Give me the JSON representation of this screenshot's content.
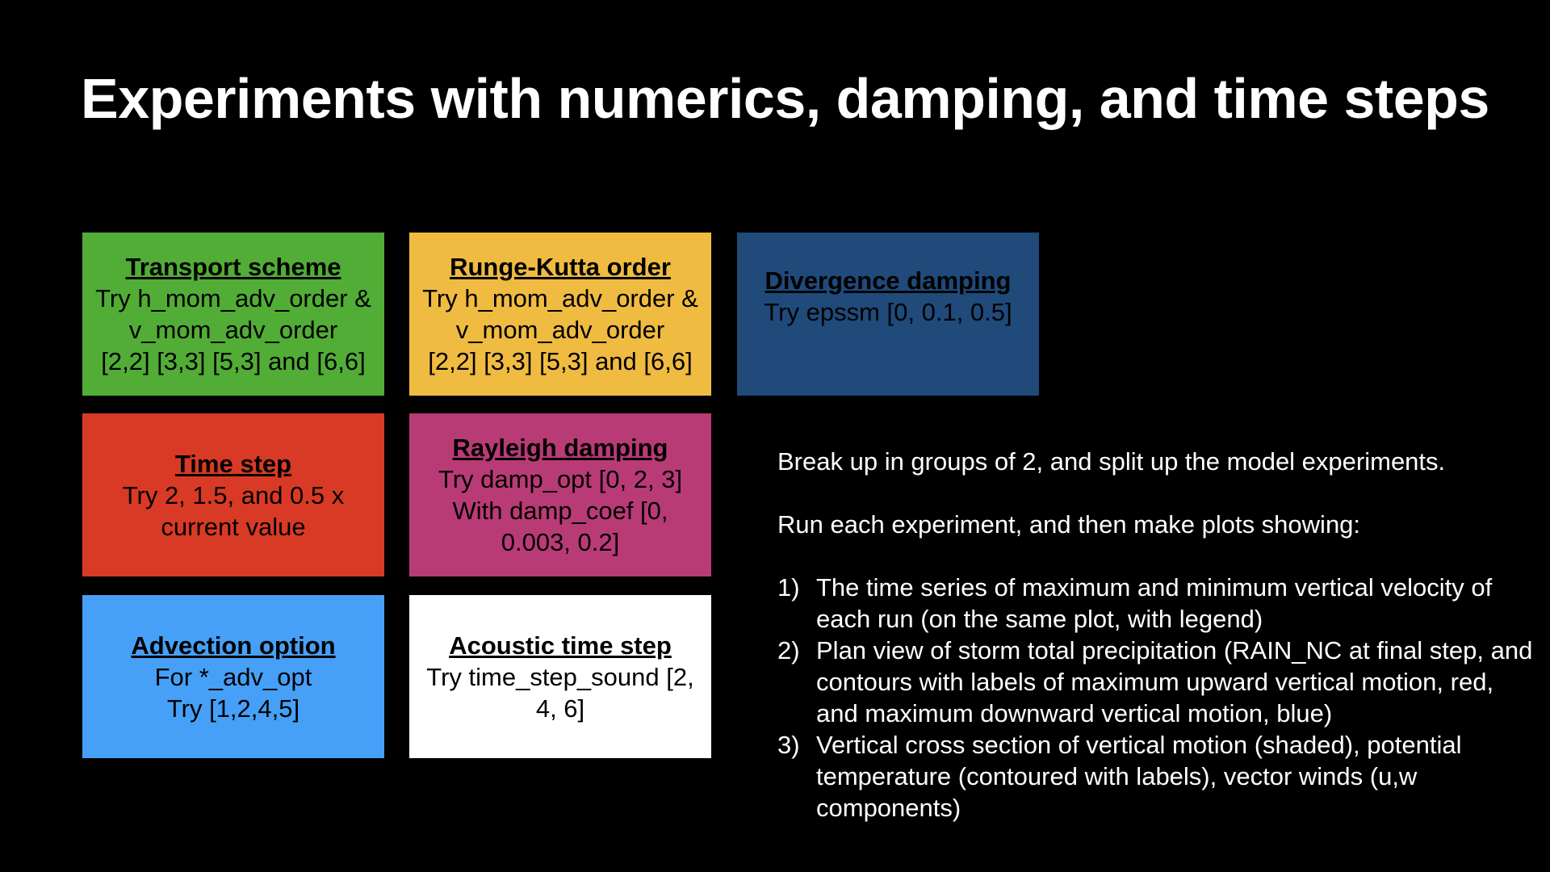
{
  "slide": {
    "title": "Experiments with numerics, damping, and time steps"
  },
  "colors": {
    "background": "#000000",
    "transport": "#52ad36",
    "runge_kutta": "#f0bb41",
    "divergence": "#1f4a7a",
    "time_step": "#d93a25",
    "rayleigh": "#b93b75",
    "advection": "#46a0f7",
    "acoustic": "#ffffff"
  },
  "tiles": {
    "transport": {
      "heading": "Transport scheme",
      "body": "Try h_mom_adv_order &\nv_mom_adv_order\n[2,2] [3,3] [5,3] and [6,6]"
    },
    "runge_kutta": {
      "heading": "Runge-Kutta order",
      "body": "Try h_mom_adv_order &\nv_mom_adv_order\n[2,2] [3,3] [5,3] and [6,6]"
    },
    "divergence": {
      "heading": "Divergence damping",
      "body": "Try epssm [0, 0.1, 0.5]"
    },
    "time_step": {
      "heading": "Time step",
      "body": "Try 2, 1.5, and 0.5 x\ncurrent value"
    },
    "rayleigh": {
      "heading": "Rayleigh damping",
      "body": "Try damp_opt [0, 2, 3]\nWith damp_coef [0,\n0.003, 0.2]"
    },
    "advection": {
      "heading": "Advection option",
      "body": "For *_adv_opt\nTry [1,2,4,5]"
    },
    "acoustic": {
      "heading": "Acoustic time step",
      "body": "Try time_step_sound [2,\n4, 6]"
    }
  },
  "instructions": {
    "line1": "Break up in groups of 2, and split up the model experiments.",
    "line2": "Run each experiment, and then make plots showing:",
    "steps": [
      {
        "num": "1)",
        "text": "The time series of maximum and minimum vertical velocity of each run (on the same plot, with legend)"
      },
      {
        "num": "2)",
        "text": "Plan view of storm total precipitation (RAIN_NC at final step, and contours with labels of maximum upward vertical motion, red, and maximum downward vertical motion, blue)"
      },
      {
        "num": "3)",
        "text": "Vertical cross section of vertical motion (shaded), potential temperature (contoured with labels), vector winds (u,w components)"
      }
    ]
  }
}
